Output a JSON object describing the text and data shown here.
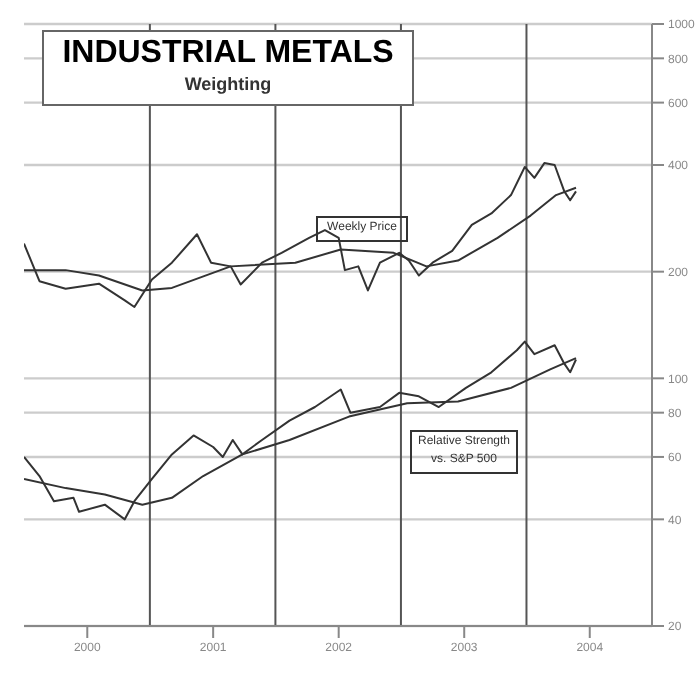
{
  "chart_data": {
    "type": "line",
    "title": "INDUSTRIAL METALS",
    "subtitle": "Weighting",
    "xlim": [
      "1999-07-01",
      "2004-06-30"
    ],
    "xticks": [
      {
        "value": "2000",
        "label": "2000"
      },
      {
        "value": "2001",
        "label": "2001"
      },
      {
        "value": "2002",
        "label": "2002"
      },
      {
        "value": "2003",
        "label": "2003"
      },
      {
        "value": "2004",
        "label": "2004"
      }
    ],
    "ylim": [
      20,
      1000
    ],
    "yticks": [
      20,
      40,
      60,
      80,
      100,
      200,
      400,
      600,
      800,
      1000
    ],
    "log": "y",
    "grid": "y",
    "ref_lines": [
      {
        "axis": "x",
        "value": "2000-07-01",
        "label": null
      },
      {
        "axis": "x",
        "value": "2001-07-01",
        "label": null
      },
      {
        "axis": "x",
        "value": "2002-07-01",
        "label": null
      },
      {
        "axis": "x",
        "value": "2003-07-01",
        "label": null
      }
    ],
    "series": [
      {
        "name": "Weekly Price",
        "color": "#333333",
        "x": [
          "1999-07-01",
          "1999-08-15",
          "1999-10-30",
          "2000-02-04",
          "2000-04-19",
          "2000-05-17",
          "2000-07-07",
          "2000-09-03",
          "2000-11-15",
          "2000-12-26",
          "2001-02-21",
          "2001-03-22",
          "2001-05-23",
          "2001-07-19",
          "2001-10-07",
          "2001-11-22",
          "2002-01-01",
          "2002-01-19",
          "2002-02-27",
          "2002-03-27",
          "2002-05-01",
          "2002-06-26",
          "2002-07-24",
          "2002-08-22",
          "2002-10-01",
          "2002-11-27",
          "2003-01-23",
          "2003-03-21",
          "2003-05-17",
          "2003-06-26",
          "2003-07-24",
          "2003-08-22",
          "2003-09-21",
          "2003-10-19",
          "2003-11-05",
          "2003-11-22"
        ],
        "values": [
          240,
          188,
          179,
          185,
          166,
          159,
          190,
          212,
          255,
          212,
          207,
          184,
          212,
          226,
          249,
          262,
          249,
          202,
          207,
          177,
          212,
          226,
          215,
          195,
          212,
          229,
          271,
          292,
          329,
          395,
          368,
          405,
          400,
          337,
          318,
          337
        ]
      },
      {
        "color": "#333333",
        "x": [
          "1999-07-01",
          "1999-10-30",
          "2000-02-04",
          "2000-06-09",
          "2000-09-03",
          "2001-02-21",
          "2001-08-28",
          "2002-01-07",
          "2002-06-10",
          "2002-09-13",
          "2002-12-14",
          "2003-04-08",
          "2003-07-13",
          "2003-09-25",
          "2003-11-22"
        ],
        "values": [
          202,
          202,
          195,
          177,
          180,
          207,
          212,
          231,
          226,
          207,
          215,
          249,
          288,
          329,
          345
        ]
      },
      {
        "name": "Relative Strength vs. S&P 500",
        "color": "#333333",
        "x": [
          "1999-07-01",
          "1999-08-15",
          "1999-09-26",
          "1999-11-22",
          "1999-12-08",
          "2000-02-21",
          "2000-04-19",
          "2000-05-17",
          "2000-07-07",
          "2000-09-03",
          "2000-11-05",
          "2001-01-01",
          "2001-01-29",
          "2001-02-27",
          "2001-03-27",
          "2001-05-23",
          "2001-08-11",
          "2001-10-24",
          "2002-01-07",
          "2002-02-04",
          "2002-05-01",
          "2002-06-26",
          "2002-08-22",
          "2002-10-19",
          "2003-01-06",
          "2003-03-21",
          "2003-06-03",
          "2003-06-26",
          "2003-07-24",
          "2003-09-21",
          "2003-10-19",
          "2003-11-05",
          "2003-11-22"
        ],
        "values": [
          60,
          53,
          45,
          46,
          42,
          44,
          40,
          45,
          52,
          61,
          69,
          64,
          60,
          67,
          61,
          67,
          76,
          83,
          93,
          80,
          83,
          91,
          89,
          83,
          94,
          104,
          120,
          127,
          117,
          124,
          110,
          104,
          113
        ]
      },
      {
        "color": "#333333",
        "x": [
          "1999-07-01",
          "1999-10-30",
          "2000-02-21",
          "2000-06-09",
          "2000-09-03",
          "2000-12-03",
          "2001-03-27",
          "2001-08-11",
          "2002-01-31",
          "2002-07-19",
          "2002-12-14",
          "2003-05-17",
          "2003-09-08",
          "2003-11-22"
        ],
        "values": [
          52,
          49,
          47,
          44,
          46,
          53,
          61,
          67,
          78,
          85,
          86,
          94,
          106,
          114
        ]
      }
    ]
  }
}
